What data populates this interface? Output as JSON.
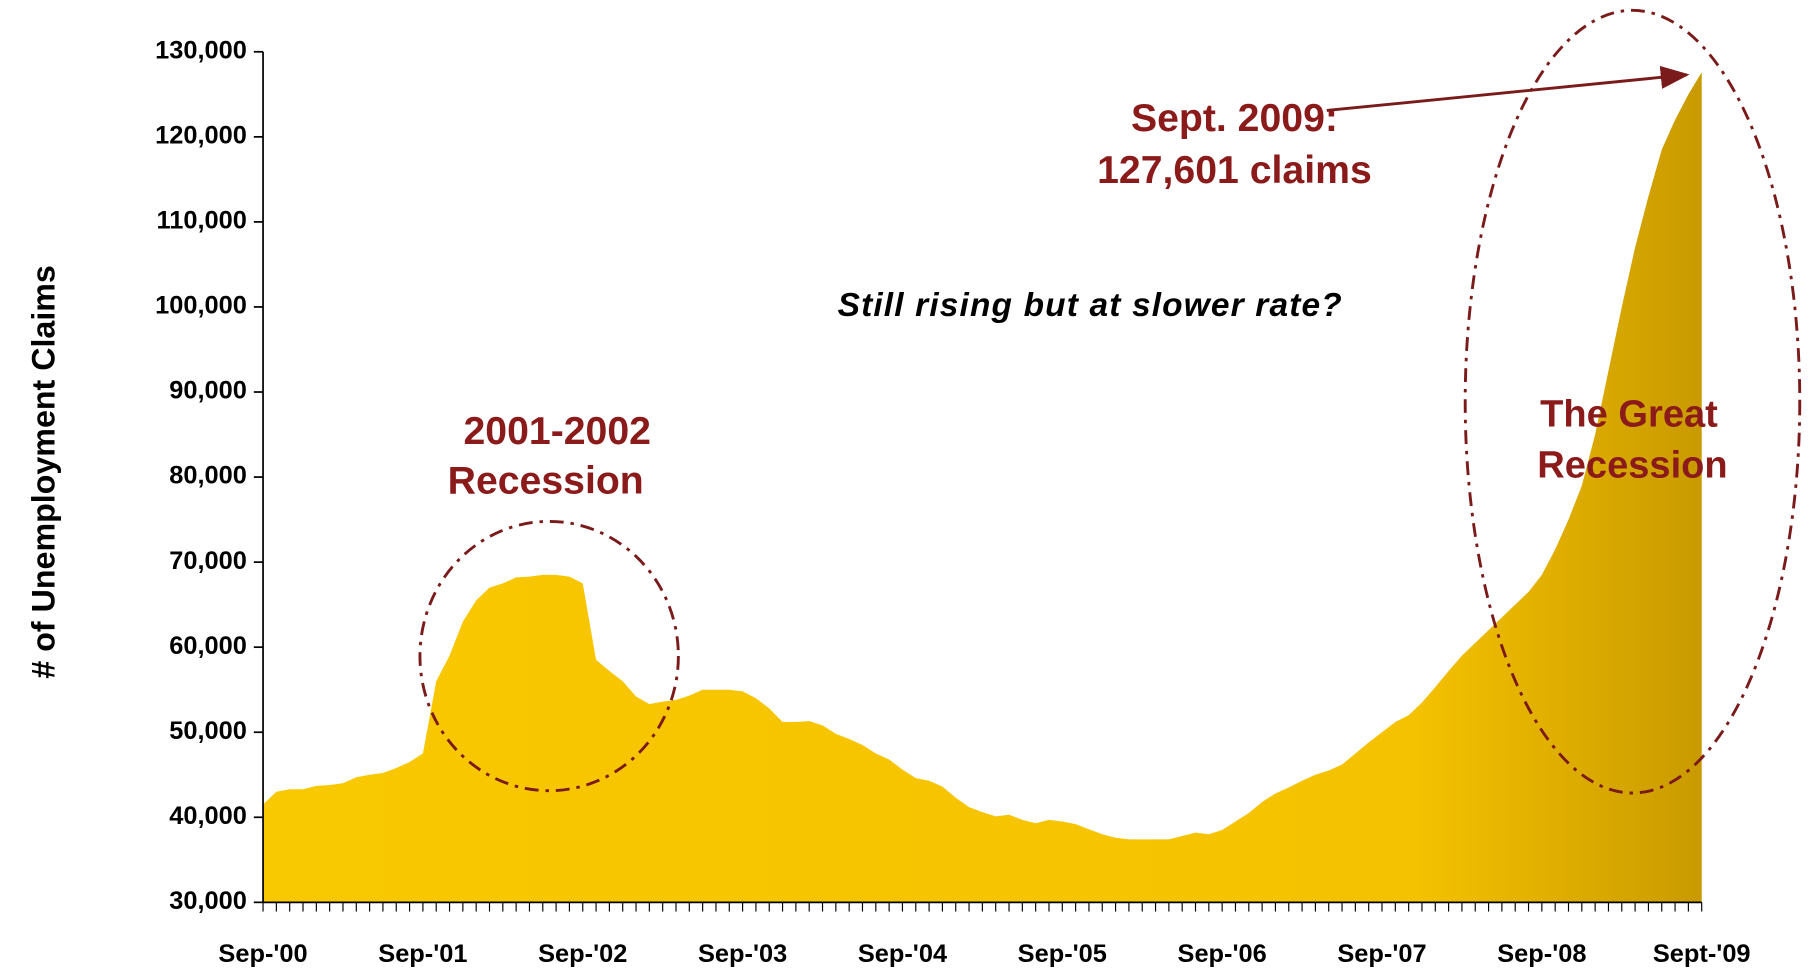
{
  "chart_data": {
    "type": "area",
    "y_label": "# of Unemployment Claims",
    "color": "#f7c400",
    "categories": [
      "Sep-'00",
      null,
      null,
      null,
      null,
      null,
      null,
      null,
      null,
      null,
      null,
      null,
      "Sep-'01",
      null,
      null,
      null,
      null,
      null,
      null,
      null,
      null,
      null,
      null,
      null,
      "Sep-'02",
      null,
      null,
      null,
      null,
      null,
      null,
      null,
      null,
      null,
      null,
      null,
      "Sep-'03",
      null,
      null,
      null,
      null,
      null,
      null,
      null,
      null,
      null,
      null,
      null,
      "Sep-'04",
      null,
      null,
      null,
      null,
      null,
      null,
      null,
      null,
      null,
      null,
      null,
      "Sep-'05",
      null,
      null,
      null,
      null,
      null,
      null,
      null,
      null,
      null,
      null,
      null,
      "Sep-'06",
      null,
      null,
      null,
      null,
      null,
      null,
      null,
      null,
      null,
      null,
      null,
      "Sep-'07",
      null,
      null,
      null,
      null,
      null,
      null,
      null,
      null,
      null,
      null,
      null,
      "Sep-'08",
      null,
      null,
      null,
      null,
      null,
      null,
      null,
      null,
      null,
      null,
      null,
      "Sept-'09"
    ],
    "values": [
      41500,
      43000,
      43300,
      43300,
      43700,
      43800,
      44000,
      44700,
      45000,
      45200,
      45800,
      46500,
      47500,
      56000,
      59000,
      63000,
      65500,
      67000,
      67500,
      68200,
      68300,
      68500,
      68500,
      68300,
      67500,
      58500,
      57200,
      56000,
      54200,
      53300,
      53600,
      53800,
      54300,
      55000,
      55000,
      55000,
      54800,
      54000,
      52800,
      51200,
      51200,
      51300,
      50800,
      49800,
      49200,
      48500,
      47500,
      46800,
      45600,
      44600,
      44300,
      43600,
      42300,
      41200,
      40600,
      40100,
      40300,
      39700,
      39300,
      39700,
      39500,
      39200,
      38600,
      38000,
      37600,
      37400,
      37400,
      37400,
      37400,
      37800,
      38200,
      38000,
      38500,
      39500,
      40500,
      41800,
      42800,
      43500,
      44300,
      45000,
      45500,
      46200,
      47500,
      48800,
      50000,
      51200,
      52000,
      53500,
      55300,
      57200,
      59000,
      60500,
      62000,
      63500,
      65000,
      66500,
      68500,
      71500,
      75000,
      79000,
      85000,
      92500,
      100000,
      107000,
      113000,
      118500,
      122000,
      125000,
      127601
    ],
    "ylim": [
      30000,
      130000
    ],
    "yticks": [
      {
        "value": 30000,
        "label": "30,000"
      },
      {
        "value": 40000,
        "label": "40,000"
      },
      {
        "value": 50000,
        "label": "50,000"
      },
      {
        "value": 60000,
        "label": "60,000"
      },
      {
        "value": 70000,
        "label": "70,000"
      },
      {
        "value": 80000,
        "label": "80,000"
      },
      {
        "value": 90000,
        "label": "90,000"
      },
      {
        "value": 100000,
        "label": "100,000"
      },
      {
        "value": 110000,
        "label": "110,000"
      },
      {
        "value": 120000,
        "label": "120,000"
      },
      {
        "value": 130000,
        "label": "130,000"
      }
    ],
    "annotations": [
      {
        "lines": [
          "Sept. 2009:",
          "127,601 claims"
        ]
      },
      {
        "lines": [
          "Still rising but at slower rate?"
        ]
      },
      {
        "lines": [
          "2001-2002",
          "Recession"
        ]
      },
      {
        "lines": [
          "The Great",
          "Recession"
        ]
      }
    ]
  }
}
